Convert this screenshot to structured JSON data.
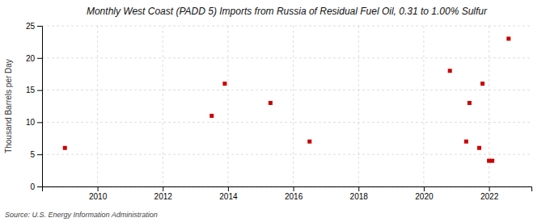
{
  "chart_data": {
    "type": "scatter",
    "title": "Monthly West Coast (PADD 5) Imports from Russia of Residual Fuel Oil, 0.31 to 1.00% Sulfur",
    "ylabel": "Thousand Barrels per Day",
    "source": "Source: U.S. Energy Information Administration",
    "x": [
      2009.0,
      2013.5,
      2013.9,
      2015.3,
      2016.5,
      2020.8,
      2021.3,
      2021.4,
      2021.7,
      2021.8,
      2022.0,
      2022.1,
      2022.6
    ],
    "values": [
      6.0,
      11.0,
      16.0,
      13.0,
      7.0,
      18.0,
      7.0,
      13.0,
      6.0,
      16.0,
      4.0,
      4.0,
      23.0
    ],
    "color": "#cc0000",
    "marker": "square",
    "xlim": [
      2008.3,
      2023.3
    ],
    "ylim": [
      0,
      25
    ],
    "xticks": [
      2010,
      2012,
      2014,
      2016,
      2018,
      2020,
      2022
    ],
    "yticks": [
      0,
      5,
      10,
      15,
      20,
      25
    ],
    "grid": true
  }
}
